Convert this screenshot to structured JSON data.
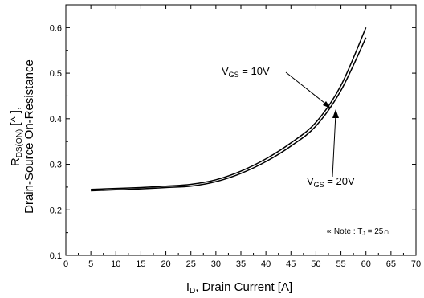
{
  "chart_data": {
    "type": "line",
    "xlim": [
      0,
      70
    ],
    "ylim": [
      0.1,
      0.65
    ],
    "xticks": [
      0,
      5,
      10,
      15,
      20,
      25,
      30,
      35,
      40,
      45,
      50,
      55,
      60,
      65,
      70
    ],
    "yticks": [
      0.1,
      0.2,
      0.3,
      0.4,
      0.5,
      0.6
    ],
    "xtick_labels": [
      "0",
      "5",
      "10",
      "15",
      "20",
      "25",
      "30",
      "35",
      "40",
      "45",
      "50",
      "55",
      "60",
      "65",
      "70"
    ],
    "ytick_labels": [
      "0.1",
      "0.2",
      "0.3",
      "0.4",
      "0.5",
      "0.6"
    ],
    "xlabel": {
      "main": "I",
      "sub": "D",
      "rest": ", Drain Current [A]"
    },
    "ylabel": {
      "line1_main": "R",
      "line1_sub": "DS(ON)",
      "line1_rest": " [^ ],",
      "line2": "Drain-Source On-Resistance"
    },
    "grid": false,
    "series": [
      {
        "name": "VGS = 10V",
        "label_main": "V",
        "label_sub": "GS",
        "label_rest": " = 10V",
        "x": [
          5,
          10,
          15,
          20,
          25,
          30,
          35,
          40,
          45,
          50,
          55,
          60
        ],
        "y": [
          0.245,
          0.247,
          0.249,
          0.252,
          0.256,
          0.266,
          0.285,
          0.312,
          0.347,
          0.392,
          0.473,
          0.6
        ]
      },
      {
        "name": "VGS = 20V",
        "label_main": "V",
        "label_sub": "GS",
        "label_rest": " = 20V",
        "x": [
          5,
          10,
          15,
          20,
          25,
          30,
          35,
          40,
          45,
          50,
          55,
          60
        ],
        "y": [
          0.242,
          0.244,
          0.246,
          0.249,
          0.252,
          0.262,
          0.28,
          0.306,
          0.34,
          0.384,
          0.462,
          0.578
        ]
      }
    ],
    "note": {
      "prefix": "∝ Note : T",
      "sub": "J",
      "rest": " = 25∩"
    }
  }
}
